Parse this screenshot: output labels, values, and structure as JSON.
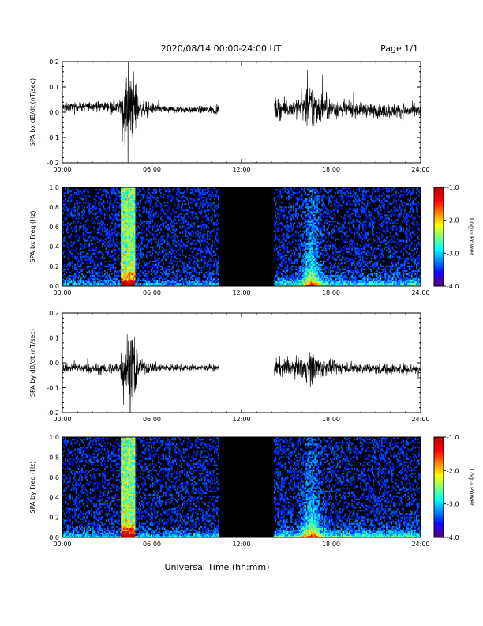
{
  "header": {
    "title": "2020/08/14  00:00-24:00 UT",
    "page": "Page 1/1"
  },
  "footer": {
    "xlabel": "Universal Time (hh:mm)"
  },
  "chart_data": [
    {
      "type": "line",
      "name": "bx-timeseries",
      "ylabel": "SPA bx dB/dt (nT/sec)",
      "xlim": [
        0,
        24
      ],
      "ylim": [
        -0.2,
        0.2
      ],
      "yticks": [
        "-0.2",
        "-0.1",
        "0.0",
        "0.1",
        "0.2"
      ],
      "yticks_values": [
        -0.2,
        -0.1,
        0.0,
        0.1,
        0.2
      ],
      "xtick_labels": [
        "00:00",
        "06:00",
        "12:00",
        "18:00",
        "24:00"
      ],
      "data_gap_hours": [
        10.5,
        14.2
      ],
      "envelope": {
        "hours": [
          0,
          1,
          2,
          3,
          3.9,
          4.0,
          4.9,
          5.1,
          6,
          7,
          8,
          9,
          10,
          10.5,
          14.2,
          15,
          16,
          16.7,
          17.2,
          18,
          19,
          20,
          21,
          22,
          23,
          24
        ],
        "amplitude": [
          0.03,
          0.03,
          0.035,
          0.04,
          0.05,
          0.25,
          0.25,
          0.06,
          0.04,
          0.03,
          0.025,
          0.025,
          0.03,
          0.03,
          0.08,
          0.06,
          0.08,
          0.18,
          0.12,
          0.07,
          0.06,
          0.05,
          0.05,
          0.05,
          0.05,
          0.05
        ],
        "baseline": [
          0.02,
          0.02,
          0.025,
          0.025,
          0.02,
          0.02,
          0.02,
          0.015,
          0.015,
          0.01,
          0.01,
          0.01,
          0.01,
          0.01,
          0.01,
          0.015,
          0.02,
          0.02,
          0.02,
          0.015,
          0.01,
          0.01,
          0.005,
          0.005,
          0.005,
          0.005
        ]
      }
    },
    {
      "type": "heatmap",
      "name": "bx-spectrogram",
      "ylabel": "SPA bx Freq (Hz)",
      "colorbar_label": "Log₁₀ Power",
      "xlim": [
        0,
        24
      ],
      "ylim": [
        0,
        1.0
      ],
      "yticks": [
        "0.0",
        "0.2",
        "0.4",
        "0.6",
        "0.8",
        "1.0"
      ],
      "yticks_values": [
        0,
        0.2,
        0.4,
        0.6,
        0.8,
        1.0
      ],
      "xtick_labels": [
        "00:00",
        "06:00",
        "12:00",
        "18:00",
        "24:00"
      ],
      "color_range": [
        -4.0,
        -1.0
      ],
      "colorbar_ticks": [
        "-1.0",
        "-2.0",
        "-3.0",
        "-4.0"
      ],
      "colorbar_values": [
        -1.0,
        -2.0,
        -3.0,
        -4.0
      ],
      "data_gap_hours": [
        10.5,
        14.2
      ],
      "storm_band_hours": [
        3.9,
        4.9
      ],
      "activity_peak_hour": 16.7
    },
    {
      "type": "line",
      "name": "by-timeseries",
      "ylabel": "SPA by dB/dt (nT/sec)",
      "xlim": [
        0,
        24
      ],
      "ylim": [
        -0.2,
        0.2
      ],
      "yticks": [
        "-0.2",
        "-0.1",
        "0.0",
        "0.1",
        "0.2"
      ],
      "yticks_values": [
        -0.2,
        -0.1,
        0.0,
        0.1,
        0.2
      ],
      "xtick_labels": [
        "00:00",
        "06:00",
        "12:00",
        "18:00",
        "24:00"
      ],
      "data_gap_hours": [
        10.5,
        14.2
      ],
      "envelope": {
        "hours": [
          0,
          1,
          2,
          3,
          3.9,
          4.0,
          4.9,
          5.1,
          6,
          7,
          8,
          9,
          10,
          10.5,
          14.2,
          15,
          16,
          16.7,
          17.2,
          18,
          19,
          20,
          21,
          22,
          23,
          24
        ],
        "amplitude": [
          0.03,
          0.035,
          0.04,
          0.04,
          0.05,
          0.25,
          0.25,
          0.06,
          0.04,
          0.03,
          0.025,
          0.02,
          0.02,
          0.02,
          0.07,
          0.06,
          0.07,
          0.14,
          0.08,
          0.05,
          0.04,
          0.04,
          0.04,
          0.04,
          0.04,
          0.04
        ],
        "baseline": [
          -0.02,
          -0.02,
          -0.025,
          -0.025,
          -0.02,
          -0.02,
          -0.02,
          -0.02,
          -0.02,
          -0.02,
          -0.02,
          -0.02,
          -0.02,
          -0.02,
          -0.02,
          -0.02,
          -0.02,
          -0.02,
          -0.02,
          -0.02,
          -0.02,
          -0.02,
          -0.025,
          -0.025,
          -0.025,
          -0.025
        ]
      }
    },
    {
      "type": "heatmap",
      "name": "by-spectrogram",
      "ylabel": "SPA by Freq (Hz)",
      "colorbar_label": "Log₁₀ Power",
      "xlim": [
        0,
        24
      ],
      "ylim": [
        0,
        1.0
      ],
      "yticks": [
        "0.0",
        "0.2",
        "0.4",
        "0.6",
        "0.8",
        "1.0"
      ],
      "yticks_values": [
        0,
        0.2,
        0.4,
        0.6,
        0.8,
        1.0
      ],
      "xtick_labels": [
        "00:00",
        "06:00",
        "12:00",
        "18:00",
        "24:00"
      ],
      "color_range": [
        -4.0,
        -1.0
      ],
      "colorbar_ticks": [
        "-1.0",
        "-2.0",
        "-3.0",
        "-4.0"
      ],
      "colorbar_values": [
        -1.0,
        -2.0,
        -3.0,
        -4.0
      ],
      "data_gap_hours": [
        10.5,
        14.2
      ],
      "storm_band_hours": [
        3.9,
        4.9
      ],
      "activity_peak_hour": 16.7
    }
  ]
}
